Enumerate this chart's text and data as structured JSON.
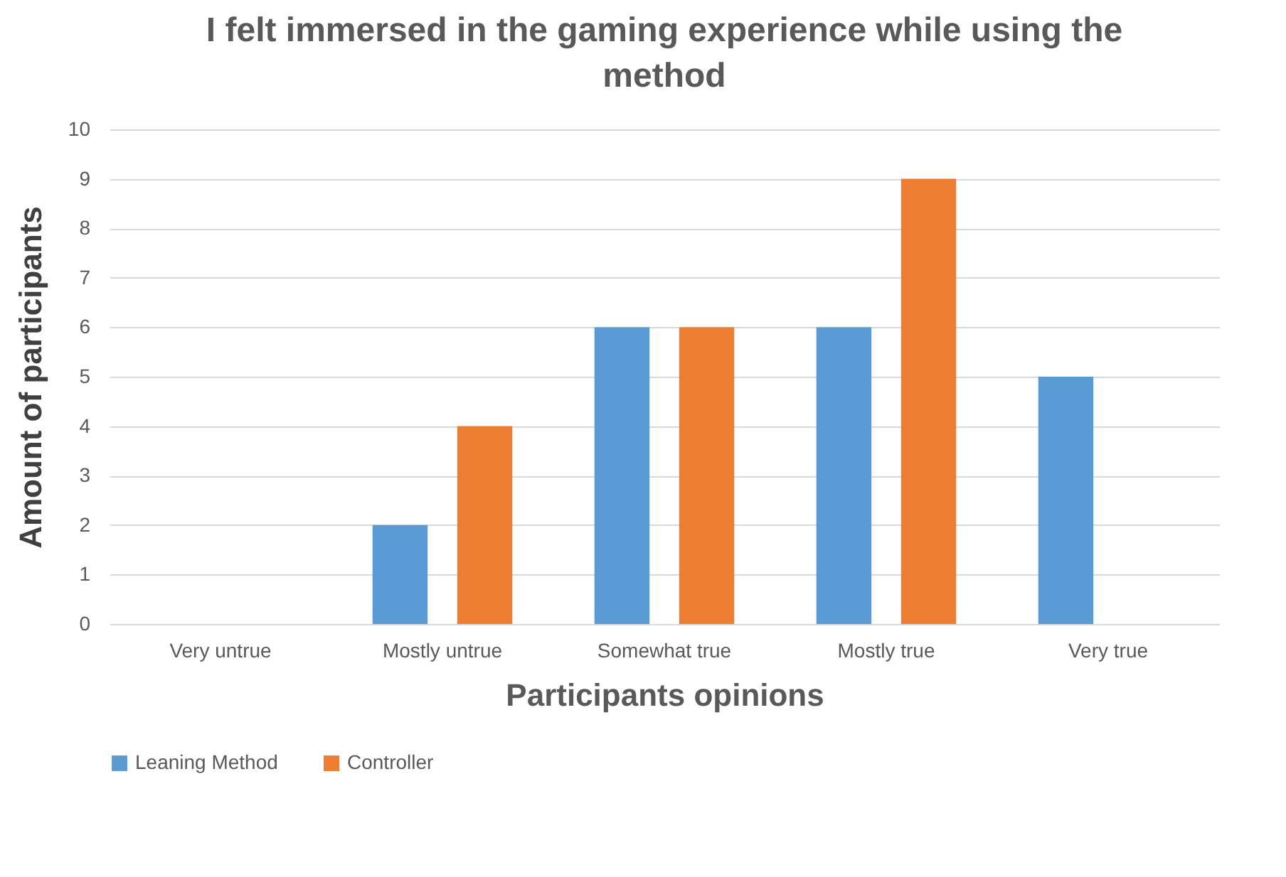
{
  "chart_data": {
    "type": "bar",
    "title": "I felt immersed in the gaming experience while using the method",
    "xlabel": "Participants opinions",
    "ylabel": "Amount of participants",
    "categories": [
      "Very untrue",
      "Mostly untrue",
      "Somewhat true",
      "Mostly true",
      "Very true"
    ],
    "series": [
      {
        "name": "Leaning Method",
        "color": "#5b9bd5",
        "values": [
          0,
          2,
          6,
          6,
          5
        ]
      },
      {
        "name": "Controller",
        "color": "#ed7d31",
        "values": [
          0,
          4,
          6,
          9,
          0
        ]
      }
    ],
    "ylim": [
      0,
      10
    ],
    "yticks": [
      0,
      1,
      2,
      3,
      4,
      5,
      6,
      7,
      8,
      9,
      10
    ],
    "grid": "y",
    "legend": "bottom"
  }
}
